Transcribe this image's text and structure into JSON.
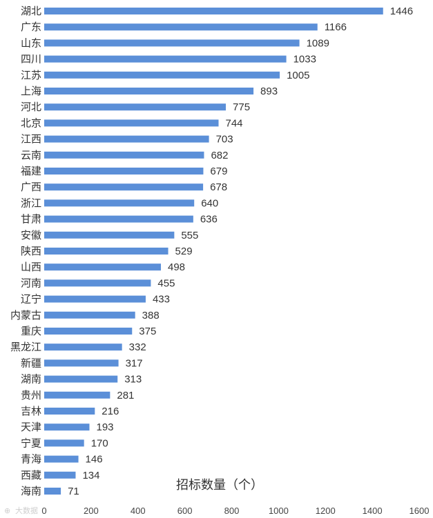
{
  "chart_data": {
    "type": "bar",
    "orientation": "horizontal",
    "title": "招标数量（个）",
    "xlabel": "招标数量（个）",
    "ylabel": "",
    "xlim": [
      0,
      1600
    ],
    "ticks": [
      0,
      200,
      400,
      600,
      800,
      1000,
      1200,
      1400,
      1600
    ],
    "grid": false,
    "legend": "none",
    "bar_color": "#5b8fd8",
    "categories": [
      "湖北",
      "广东",
      "山东",
      "四川",
      "江苏",
      "上海",
      "河北",
      "北京",
      "江西",
      "云南",
      "福建",
      "广西",
      "浙江",
      "甘肃",
      "安徽",
      "陕西",
      "山西",
      "河南",
      "辽宁",
      "内蒙古",
      "重庆",
      "黑龙江",
      "新疆",
      "湖南",
      "贵州",
      "吉林",
      "天津",
      "宁夏",
      "青海",
      "西藏",
      "海南"
    ],
    "values": [
      1446,
      1166,
      1089,
      1033,
      1005,
      893,
      775,
      744,
      703,
      682,
      679,
      678,
      640,
      636,
      555,
      529,
      498,
      455,
      433,
      388,
      375,
      332,
      317,
      313,
      281,
      216,
      193,
      170,
      146,
      134,
      71
    ]
  },
  "watermark": {
    "text": "大数据"
  }
}
